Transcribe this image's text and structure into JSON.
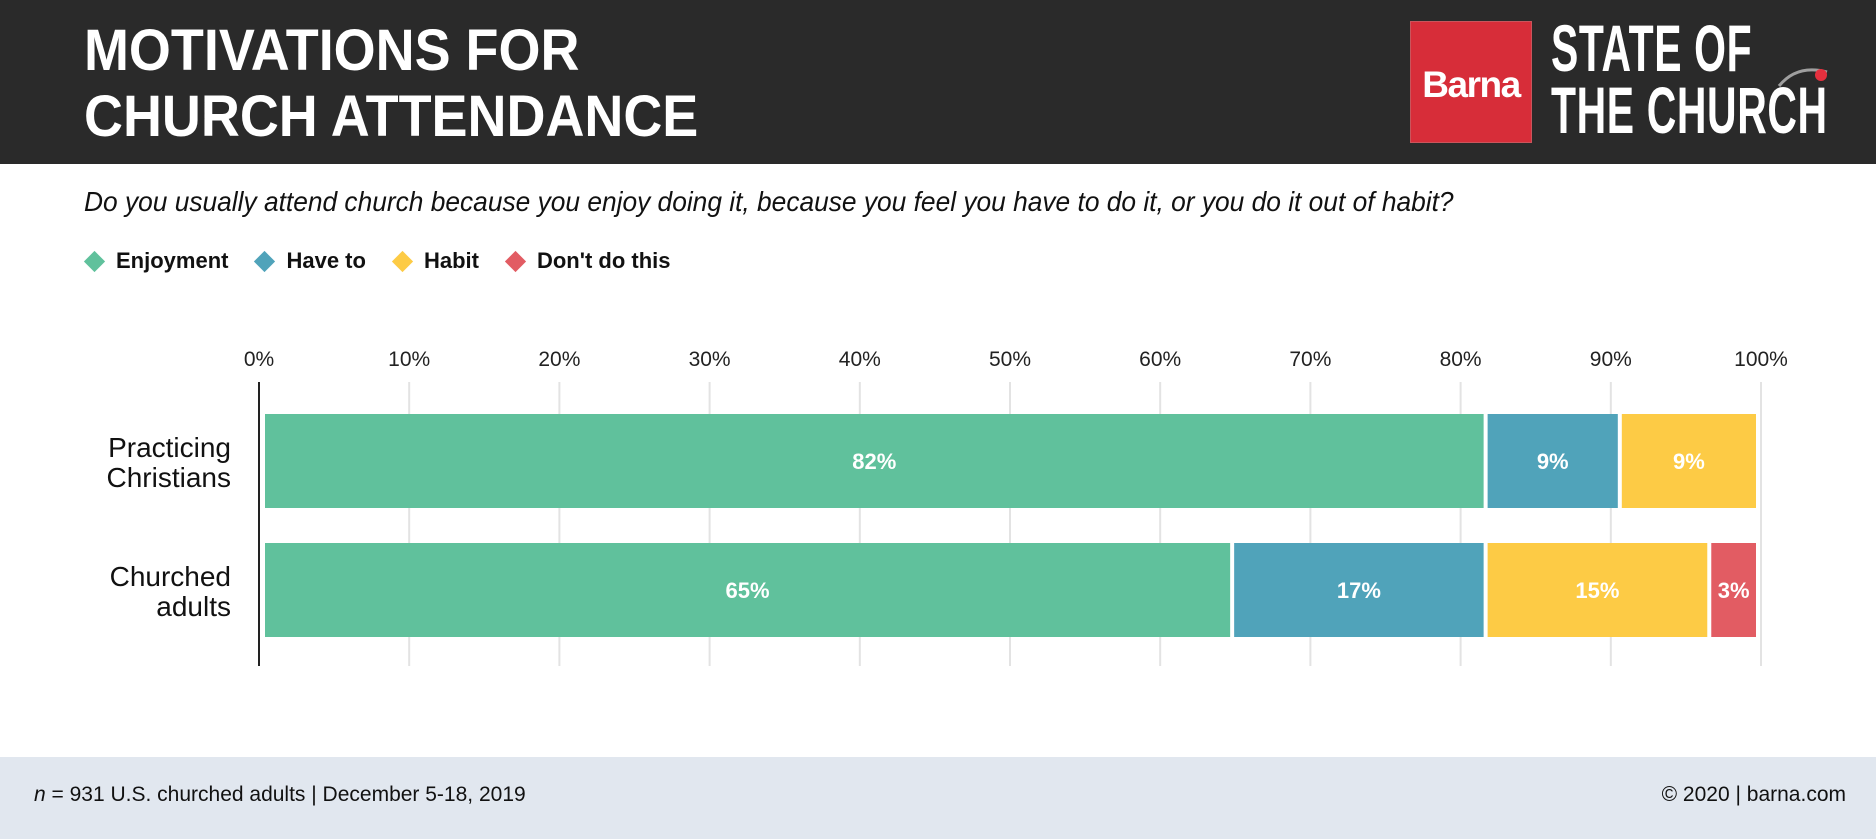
{
  "header": {
    "title_lines": [
      "MOTIVATIONS FOR",
      "CHURCH ATTENDANCE"
    ],
    "logo": {
      "brand": "Barna",
      "lines": [
        "STATE OF",
        "THE CHURCH"
      ],
      "brand_color": "#d72d39"
    }
  },
  "question": "Do you usually attend church because you enjoy doing it, because you feel you have to do it, or you do it out of habit?",
  "footer": {
    "sample_n": "n",
    "sample_rest": " = 931 U.S. churched adults | December 5-18, 2019",
    "copyright": "© 2020 | barna.com"
  },
  "chart_data": {
    "type": "bar",
    "orientation": "horizontal",
    "stacked": true,
    "title": "MOTIVATIONS FOR CHURCH ATTENDANCE",
    "categories": [
      "Practicing Christians",
      "Churched adults"
    ],
    "category_label_lines": [
      [
        "Practicing",
        "Christians"
      ],
      [
        "Churched",
        "adults"
      ]
    ],
    "series": [
      {
        "name": "Enjoyment",
        "color": "#60c19c",
        "values": [
          82,
          65
        ]
      },
      {
        "name": "Have to",
        "color": "#50a3ba",
        "values": [
          9,
          17
        ]
      },
      {
        "name": "Habit",
        "color": "#fdcb45",
        "values": [
          9,
          15
        ]
      },
      {
        "name": "Don't do this",
        "color": "#e25c63",
        "values": [
          0,
          3
        ]
      }
    ],
    "value_suffix": "%",
    "xlim": [
      0,
      100
    ],
    "xticks": [
      0,
      10,
      20,
      30,
      40,
      50,
      60,
      70,
      80,
      90,
      100
    ],
    "xtick_labels": [
      "0%",
      "10%",
      "20%",
      "30%",
      "40%",
      "50%",
      "60%",
      "70%",
      "80%",
      "90%",
      "100%"
    ],
    "grid": true,
    "legend": "top-left"
  }
}
